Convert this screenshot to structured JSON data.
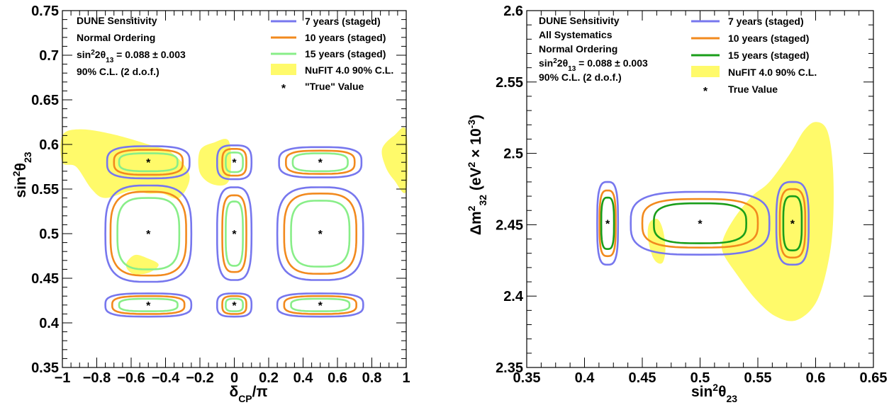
{
  "chart_data": [
    {
      "type": "contour",
      "xlim": [
        -1,
        1
      ],
      "ylim": [
        0.35,
        0.75
      ],
      "x_ticks": [
        -1,
        -0.8,
        -0.6,
        -0.4,
        -0.2,
        0,
        0.2,
        0.4,
        0.6,
        0.8,
        1
      ],
      "x_tick_labels": [
        "−1",
        "−0.8",
        "−0.6",
        "−0.4",
        "−0.2",
        "0",
        "0.2",
        "0.4",
        "0.6",
        "0.8",
        "1"
      ],
      "y_ticks": [
        0.35,
        0.4,
        0.45,
        0.5,
        0.55,
        0.6,
        0.65,
        0.7,
        0.75
      ],
      "y_tick_labels": [
        "0.35",
        "0.4",
        "0.45",
        "0.5",
        "0.55",
        "0.6",
        "0.65",
        "0.7",
        "0.75"
      ],
      "xlabel": {
        "main": "δ",
        "sub": "CP",
        "tail": "/π"
      },
      "ylabel": {
        "main": "sin",
        "sup": "2",
        "greek": "θ",
        "sub": "23"
      },
      "annotations": [
        {
          "parts": [
            {
              "t": "DUNE Sensitivity"
            }
          ]
        },
        {
          "parts": [
            {
              "t": "Normal Ordering"
            }
          ]
        },
        {
          "parts": [
            {
              "t": "sin"
            },
            {
              "t": "2",
              "sup": true
            },
            {
              "t": "2θ"
            },
            {
              "t": "13",
              "sub": true
            },
            {
              "t": " = 0.088 ± 0.003"
            }
          ]
        },
        {
          "parts": [
            {
              "t": "90% C.L. (2 d.o.f.)"
            }
          ]
        }
      ],
      "legend": [
        {
          "label": "7 years (staged)",
          "kind": "line",
          "color": "#7777ee"
        },
        {
          "label": "10 years (staged)",
          "kind": "line",
          "color": "#f28a1e"
        },
        {
          "label": "15 years (staged)",
          "kind": "line",
          "color": "#88ee88"
        },
        {
          "label": "NuFIT 4.0 90% C.L.",
          "kind": "fill",
          "color": "#fffa6a"
        },
        {
          "label": "\"True\" Value",
          "kind": "marker",
          "color": "#000000"
        }
      ],
      "nufit_regions": [
        [
          [
            -1,
            0.61
          ],
          [
            -0.9,
            0.617
          ],
          [
            -0.72,
            0.612
          ],
          [
            -0.5,
            0.6
          ],
          [
            -0.36,
            0.59
          ],
          [
            -0.26,
            0.565
          ],
          [
            -0.32,
            0.54
          ],
          [
            -0.42,
            0.545
          ],
          [
            -0.5,
            0.545
          ],
          [
            -0.6,
            0.548
          ],
          [
            -0.75,
            0.54
          ],
          [
            -0.83,
            0.55
          ],
          [
            -0.92,
            0.575
          ],
          [
            -1,
            0.58
          ]
        ],
        [
          [
            -0.58,
            0.476
          ],
          [
            -0.5,
            0.472
          ],
          [
            -0.44,
            0.465
          ],
          [
            -0.5,
            0.456
          ],
          [
            -0.59,
            0.455
          ],
          [
            -0.63,
            0.465
          ]
        ],
        [
          [
            -0.2,
            0.593
          ],
          [
            -0.12,
            0.602
          ],
          [
            -0.03,
            0.603
          ],
          [
            -0.03,
            0.56
          ],
          [
            -0.12,
            0.555
          ],
          [
            -0.2,
            0.568
          ]
        ],
        [
          [
            1,
            0.615
          ],
          [
            0.93,
            0.61
          ],
          [
            0.86,
            0.595
          ],
          [
            0.88,
            0.575
          ],
          [
            0.93,
            0.56
          ],
          [
            1,
            0.548
          ]
        ]
      ],
      "true_values": [
        [
          -0.5,
          0.58
        ],
        [
          0,
          0.58
        ],
        [
          0.5,
          0.58
        ],
        [
          -0.5,
          0.5
        ],
        [
          0,
          0.5
        ],
        [
          0.5,
          0.5
        ],
        [
          -0.5,
          0.42
        ],
        [
          0,
          0.42
        ],
        [
          0.5,
          0.42
        ]
      ],
      "contour_colors": [
        "#7777ee",
        "#f28a1e",
        "#88ee88"
      ],
      "contours": [
        {
          "center": [
            -0.5,
            0.58
          ],
          "half_widths": [
            [
              0.24,
              0.018
            ],
            [
              0.2,
              0.014
            ],
            [
              0.17,
              0.01
            ]
          ]
        },
        {
          "center": [
            0,
            0.58
          ],
          "half_widths": [
            [
              0.1,
              0.019
            ],
            [
              0.07,
              0.015
            ],
            [
              0.05,
              0.011
            ]
          ]
        },
        {
          "center": [
            0.5,
            0.58
          ],
          "half_widths": [
            [
              0.24,
              0.017
            ],
            [
              0.2,
              0.013
            ],
            [
              0.16,
              0.01
            ]
          ]
        },
        {
          "center": [
            -0.5,
            0.5
          ],
          "half_widths": [
            [
              0.25,
              0.054
            ],
            [
              0.22,
              0.047
            ],
            [
              0.18,
              0.04
            ]
          ]
        },
        {
          "center": [
            0,
            0.5
          ],
          "half_widths": [
            [
              0.1,
              0.052
            ],
            [
              0.07,
              0.043
            ],
            [
              0.05,
              0.036
            ]
          ]
        },
        {
          "center": [
            0.5,
            0.5
          ],
          "half_widths": [
            [
              0.25,
              0.052
            ],
            [
              0.21,
              0.045
            ],
            [
              0.17,
              0.037
            ]
          ]
        },
        {
          "center": [
            -0.5,
            0.42
          ],
          "half_widths": [
            [
              0.25,
              0.013
            ],
            [
              0.21,
              0.01
            ],
            [
              0.17,
              0.007
            ]
          ]
        },
        {
          "center": [
            0,
            0.42
          ],
          "half_widths": [
            [
              0.1,
              0.013
            ],
            [
              0.07,
              0.01
            ],
            [
              0.05,
              0.007
            ]
          ]
        },
        {
          "center": [
            0.5,
            0.42
          ],
          "half_widths": [
            [
              0.25,
              0.013
            ],
            [
              0.21,
              0.01
            ],
            [
              0.17,
              0.007
            ]
          ]
        }
      ]
    },
    {
      "type": "contour",
      "xlim": [
        0.35,
        0.65
      ],
      "ylim": [
        2.35,
        2.6
      ],
      "x_ticks": [
        0.35,
        0.4,
        0.45,
        0.5,
        0.55,
        0.6,
        0.65
      ],
      "x_tick_labels": [
        "0.35",
        "0.4",
        "0.45",
        "0.5",
        "0.55",
        "0.6",
        "0.65"
      ],
      "y_ticks": [
        2.35,
        2.4,
        2.45,
        2.5,
        2.55,
        2.6
      ],
      "y_tick_labels": [
        "2.35",
        "2.4",
        "2.45",
        "2.5",
        "2.55",
        "2.6"
      ],
      "xlabel": {
        "main": "sin",
        "sup": "2",
        "greek": "θ",
        "sub": "23"
      },
      "ylabel": {
        "main": "Δm",
        "sup": "2",
        "sub": "32",
        "tail": " (eV",
        "tail_sup": "2",
        "tail2": " × 10",
        "tail2_sup": "-3",
        "tail3": ")"
      },
      "annotations": [
        {
          "parts": [
            {
              "t": "DUNE Sensitivity"
            }
          ]
        },
        {
          "parts": [
            {
              "t": "All Systematics"
            }
          ]
        },
        {
          "parts": [
            {
              "t": "Normal Ordering"
            }
          ]
        },
        {
          "parts": [
            {
              "t": "sin"
            },
            {
              "t": "2",
              "sup": true
            },
            {
              "t": "2θ"
            },
            {
              "t": "13",
              "sub": true
            },
            {
              "t": " = 0.088 ± 0.003"
            }
          ]
        },
        {
          "parts": [
            {
              "t": "90% C.L. (2 d.o.f.)"
            }
          ]
        }
      ],
      "legend": [
        {
          "label": "7 years (staged)",
          "kind": "line",
          "color": "#7777ee"
        },
        {
          "label": "10 years (staged)",
          "kind": "line",
          "color": "#f28a1e"
        },
        {
          "label": "15 years (staged)",
          "kind": "line",
          "color": "#1a9e1a"
        },
        {
          "label": "NuFIT 4.0 90% C.L.",
          "kind": "fill",
          "color": "#fffa6a"
        },
        {
          "label": "True Value",
          "kind": "marker",
          "color": "#000000"
        }
      ],
      "nufit_regions": [
        [
          [
            0.545,
            2.47
          ],
          [
            0.56,
            2.48
          ],
          [
            0.578,
            2.5
          ],
          [
            0.59,
            2.516
          ],
          [
            0.6,
            2.522
          ],
          [
            0.61,
            2.516
          ],
          [
            0.615,
            2.49
          ],
          [
            0.615,
            2.45
          ],
          [
            0.61,
            2.42
          ],
          [
            0.6,
            2.395
          ],
          [
            0.583,
            2.383
          ],
          [
            0.565,
            2.386
          ],
          [
            0.548,
            2.398
          ],
          [
            0.532,
            2.415
          ],
          [
            0.52,
            2.43
          ],
          [
            0.52,
            2.44
          ],
          [
            0.53,
            2.455
          ]
        ],
        [
          [
            0.456,
            2.451
          ],
          [
            0.463,
            2.454
          ],
          [
            0.468,
            2.446
          ],
          [
            0.47,
            2.432
          ],
          [
            0.467,
            2.423
          ],
          [
            0.46,
            2.426
          ],
          [
            0.455,
            2.44
          ]
        ]
      ],
      "true_values": [
        [
          0.42,
          2.451
        ],
        [
          0.5,
          2.451
        ],
        [
          0.58,
          2.451
        ]
      ],
      "contour_colors": [
        "#7777ee",
        "#f28a1e",
        "#1a9e1a"
      ],
      "contours": [
        {
          "center": [
            0.42,
            2.451
          ],
          "half_widths": [
            [
              0.009,
              0.029
            ],
            [
              0.007,
              0.023
            ],
            [
              0.0055,
              0.018
            ]
          ]
        },
        {
          "center": [
            0.5,
            2.451
          ],
          "half_widths": [
            [
              0.06,
              0.022
            ],
            [
              0.05,
              0.017
            ],
            [
              0.04,
              0.014
            ]
          ]
        },
        {
          "center": [
            0.58,
            2.451
          ],
          "half_widths": [
            [
              0.014,
              0.029
            ],
            [
              0.011,
              0.024
            ],
            [
              0.008,
              0.019
            ]
          ]
        }
      ]
    }
  ]
}
